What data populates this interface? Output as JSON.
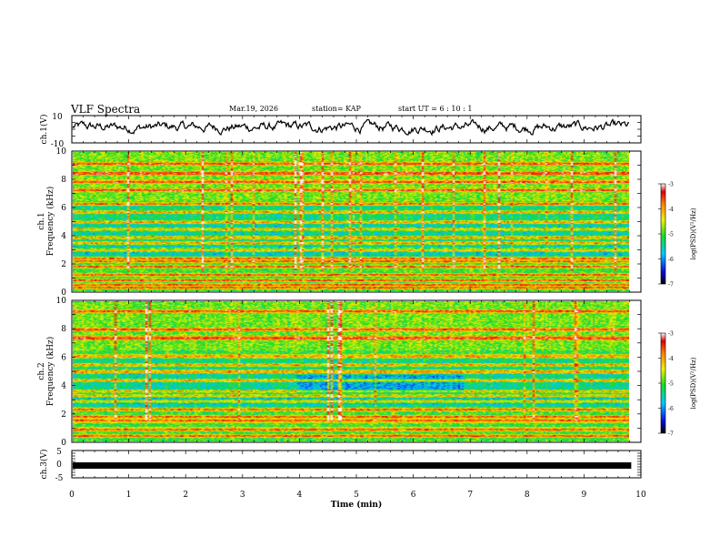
{
  "header": {
    "title": "VLF Spectra",
    "date": "Mar.19, 2026",
    "station": "station= KAP",
    "start": "start  UT  =   6  : 10 : 1"
  },
  "chart_data": [
    {
      "type": "line",
      "ylabel": "ch.1(V)",
      "ylim": [
        -10,
        10
      ],
      "yticks": [
        "10",
        "-10"
      ],
      "xlim": [
        0,
        10
      ],
      "series": [
        {
          "name": "ch.1",
          "description": "noisy waveform oscillating roughly between -3 and 6 V"
        }
      ]
    },
    {
      "type": "heatmap",
      "ylabel": "ch.1\nFrequency (kHz)",
      "ylabel_top": "ch.1",
      "ylabel_bottom": "Frequency  (kHz)",
      "ylim": [
        0,
        10
      ],
      "yticks": [
        "0",
        "2",
        "4",
        "6",
        "8",
        "10"
      ],
      "xlim": [
        0,
        9.83
      ],
      "colorbar": {
        "label": "log(PSD)(V²/Hz)",
        "range": [
          -7,
          -3
        ],
        "ticks": [
          "-3",
          "-4",
          "-5",
          "-6",
          "-7"
        ]
      },
      "bands_kHz": [
        0.3,
        0.5,
        0.8,
        1.2,
        1.8,
        2.2,
        2.4,
        3.0,
        3.5,
        3.9,
        4.5,
        5.0,
        5.7,
        6.3,
        7.3,
        7.9,
        8.5,
        9.2
      ]
    },
    {
      "type": "heatmap",
      "ylabel": "ch.2\nFrequency (kHz)",
      "ylabel_top": "ch.2",
      "ylabel_bottom": "Frequency  (kHz)",
      "ylim": [
        0,
        10
      ],
      "yticks": [
        "0",
        "2",
        "4",
        "6",
        "8",
        "10"
      ],
      "xlim": [
        0,
        9.83
      ],
      "colorbar": {
        "label": "log(PSD)(V²/Hz)",
        "range": [
          -7,
          -3
        ],
        "ticks": [
          "-3",
          "-4",
          "-5",
          "-6",
          "-7"
        ]
      },
      "bands_kHz": [
        0.4,
        0.9,
        1.5,
        1.8,
        2.3,
        2.9,
        3.3,
        3.6,
        4.4,
        5.0,
        5.5,
        6.1,
        7.4,
        8.0,
        9.3
      ]
    },
    {
      "type": "line",
      "ylabel": "ch.3(V)",
      "ylim": [
        -5,
        5
      ],
      "yticks": [
        "5",
        "0",
        "-5"
      ],
      "xlim": [
        0,
        10
      ],
      "series": [
        {
          "name": "ch.3",
          "description": "dense thick trace near -0.5 V"
        }
      ]
    }
  ],
  "xaxis": {
    "label": "Time  (min)",
    "ticks": [
      "0",
      "1",
      "2",
      "3",
      "4",
      "5",
      "6",
      "7",
      "8",
      "9",
      "10"
    ],
    "range": [
      0,
      10
    ]
  }
}
